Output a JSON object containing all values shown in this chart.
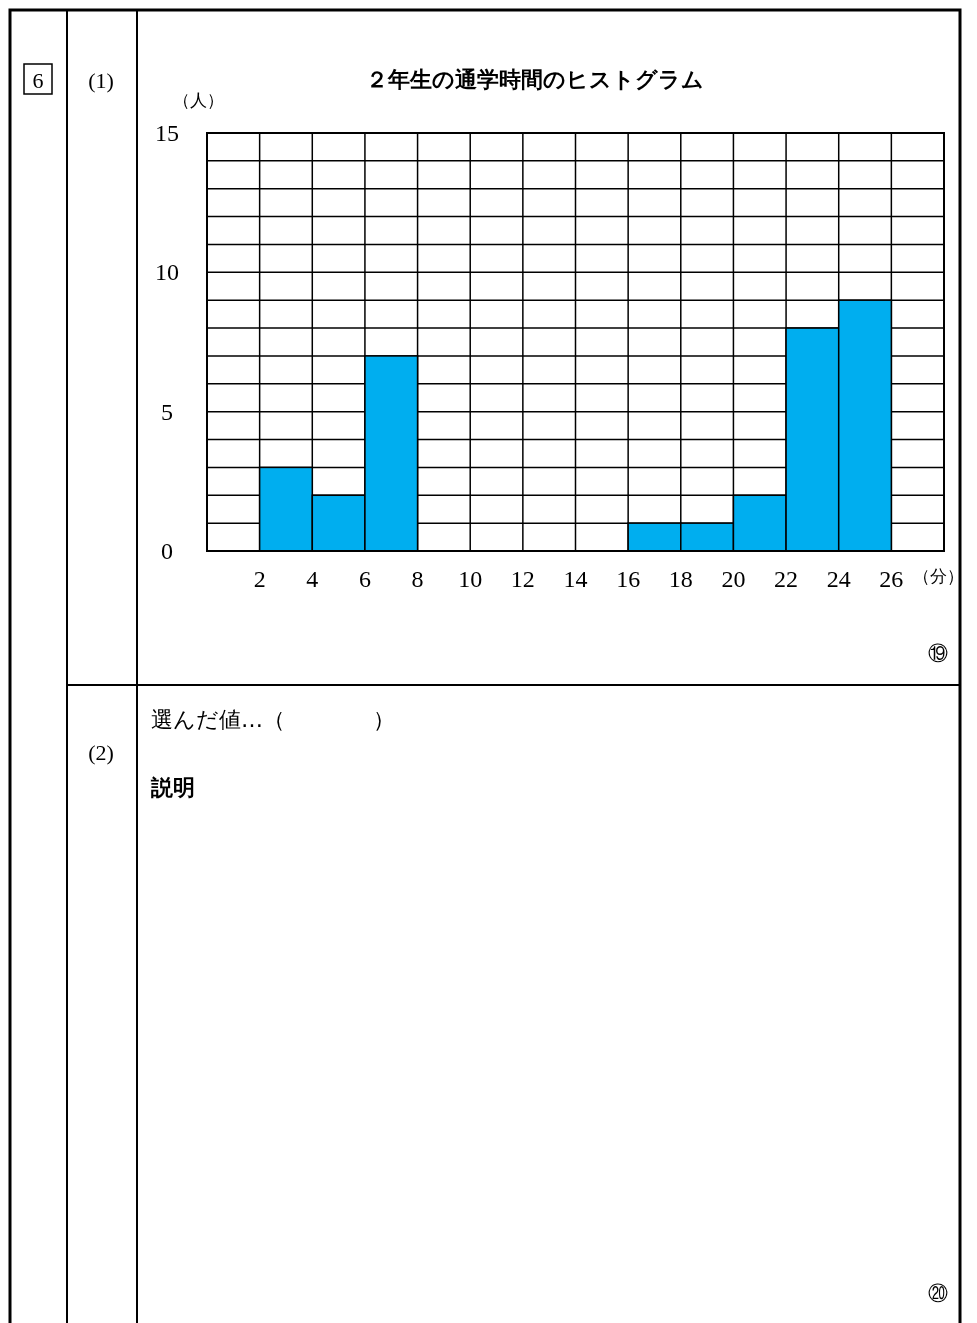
{
  "chart_data": {
    "type": "histogram",
    "title": "２年生の通学時間のヒストグラム",
    "xlabel": "（分）",
    "ylabel": "（人）",
    "bins": [
      0,
      2,
      4,
      6,
      8,
      10,
      12,
      14,
      16,
      18,
      20,
      22,
      24,
      26,
      28
    ],
    "values": [
      0,
      3,
      2,
      7,
      0,
      0,
      0,
      0,
      1,
      1,
      2,
      8,
      9,
      0
    ],
    "color": "#00aeef",
    "xlim": [
      0,
      28
    ],
    "xticks": [
      2,
      4,
      6,
      8,
      10,
      12,
      14,
      16,
      18,
      20,
      22,
      24,
      26
    ],
    "ylim": [
      0,
      15
    ],
    "yticks": [
      0,
      {
        "value": 1,
        "label": null
      },
      {
        "value": 2,
        "label": null
      },
      {
        "value": 3,
        "label": null
      },
      {
        "value": 4,
        "label": null
      },
      5,
      {
        "value": 6,
        "label": null
      },
      {
        "value": 7,
        "label": null
      },
      {
        "value": 8,
        "label": null
      },
      {
        "value": 9,
        "label": null
      },
      10,
      {
        "value": 11,
        "label": null
      },
      {
        "value": 12,
        "label": null
      },
      {
        "value": 13,
        "label": null
      },
      {
        "value": 14,
        "label": null
      },
      15
    ],
    "grid": true,
    "annotations": [
      "6",
      "(1)",
      "(2)",
      "選んだ値…（　　　　）",
      "説明",
      "⑲",
      "⑳"
    ]
  }
}
